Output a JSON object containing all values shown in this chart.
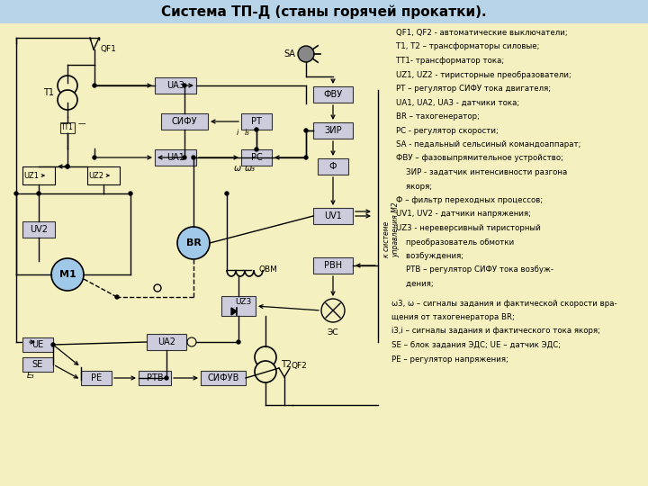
{
  "title": "Система ТП-Д (станы горячей прокатки).",
  "bg_color": "#f5f0c0",
  "header_color": "#b8d4e8",
  "title_fontsize": 11,
  "legend_lines": [
    "QF1, QF2 - автоматические выключатели;",
    "T1, T2 – трансформаторы силовые;",
    "TT1- трансформатор тока;",
    "UZ1, UZ2 - тиристорные преобразователи;",
    "PT – регулятор СИФУ тока двигателя;",
    "UA1, UA2, UA3 - датчики тока;",
    "BR – тахогенератор;",
    "PC - регулятор скорости;",
    "SA - педальный сельсиный командоаппарат;",
    "ФВУ – фазовыпрямительное устройство;",
    "    ЗИР - задатчик интенсивности разгона",
    "    якоря;",
    "Ф – фильтр переходных процессов;",
    "UV1, UV2 - датчики напряжения;",
    "UZ3 - нереверсивный тиристорный",
    "    преобразователь обмотки",
    "    возбуждения;",
    "    РТВ – регулятор СИФУ тока возбуж-",
    "    дения;"
  ],
  "legend_lines2": [
    "ω3, ω – сигналы задания и фактической скорости вра-",
    "щения от тахогенератора BR;",
    "i3,i – сигналы задания и фактического тока якоря;",
    "SE – блок задания ЭДС; UE – датчик ЭДС;",
    "PE – регулятор напряжения;"
  ]
}
